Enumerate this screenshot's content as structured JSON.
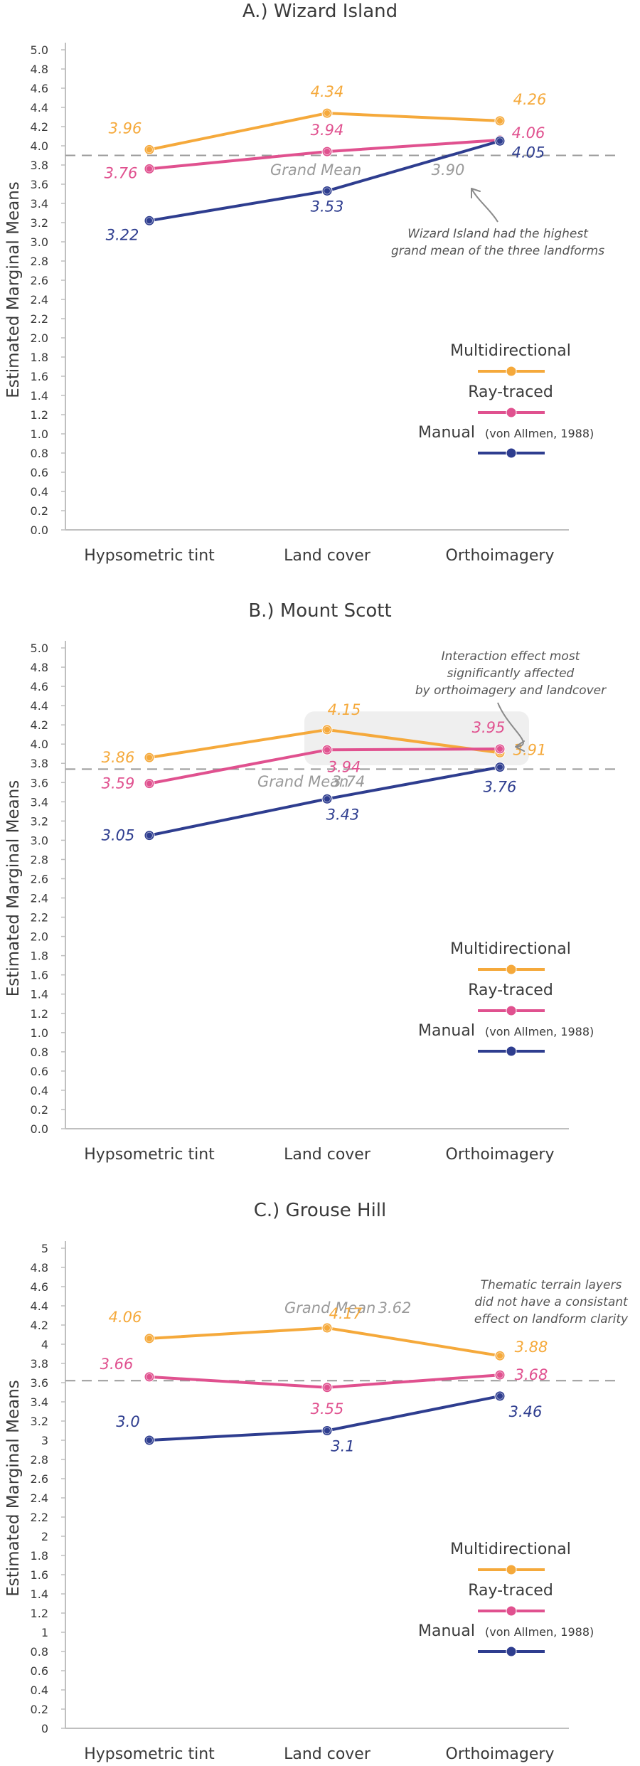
{
  "colors": {
    "multidirectional": "#F5A93B",
    "raytraced": "#E0518F",
    "manual": "#2E3D8F",
    "grand_mean": "#9a9a9a",
    "axis": "#bfbfbf"
  },
  "legend": {
    "multidirectional": "Multidirectional",
    "raytraced": "Ray-traced",
    "manual_main": "Manual",
    "manual_sub": "(von Allmen, 1988)"
  },
  "chart_data": [
    {
      "type": "line",
      "title": "A.) Wizard Island",
      "ylabel": "Estimated Marginal Means",
      "xlabel": "",
      "categories": [
        "Hypsometric tint",
        "Land cover",
        "Orthoimagery"
      ],
      "ylim": [
        0,
        5
      ],
      "yticks": [
        "0.0",
        "0.2",
        "0.4",
        "0.6",
        "0.8",
        "1.0",
        "1.2",
        "1.4",
        "1.6",
        "1.8",
        "2.0",
        "2.2",
        "2.4",
        "2.6",
        "2.8",
        "3.0",
        "3.2",
        "3.4",
        "3.6",
        "3.8",
        "4.0",
        "4.2",
        "4.4",
        "4.6",
        "4.8",
        "5.0"
      ],
      "series": [
        {
          "name": "Multidirectional",
          "key": "multidirectional",
          "values": [
            3.96,
            4.34,
            4.26
          ],
          "labels": [
            "3.96",
            "4.34",
            "4.26"
          ]
        },
        {
          "name": "Ray-traced",
          "key": "raytraced",
          "values": [
            3.76,
            3.94,
            4.06
          ],
          "labels": [
            "3.76",
            "3.94",
            "4.06"
          ]
        },
        {
          "name": "Manual (von Allmen, 1988)",
          "key": "manual",
          "values": [
            3.22,
            3.53,
            4.05
          ],
          "labels": [
            "3.22",
            "3.53",
            "4.05"
          ]
        }
      ],
      "grand_mean": {
        "value": 3.9,
        "label": "Grand Mean",
        "value_label": "3.90"
      },
      "annotation": [
        "Wizard Island had the highest",
        "grand mean of the three landforms"
      ]
    },
    {
      "type": "line",
      "title": "B.) Mount Scott",
      "ylabel": "Estimated Marginal Means",
      "xlabel": "",
      "categories": [
        "Hypsometric tint",
        "Land cover",
        "Orthoimagery"
      ],
      "ylim": [
        0,
        5
      ],
      "yticks": [
        "0.0",
        "0.2",
        "0.4",
        "0.6",
        "0.8",
        "1.0",
        "1.2",
        "1.4",
        "1.6",
        "1.8",
        "2.0",
        "2.2",
        "2.4",
        "2.6",
        "2.8",
        "3.0",
        "3.2",
        "3.4",
        "3.6",
        "3.8",
        "4.0",
        "4.2",
        "4.4",
        "4.6",
        "4.8",
        "5.0"
      ],
      "series": [
        {
          "name": "Multidirectional",
          "key": "multidirectional",
          "values": [
            3.86,
            4.15,
            3.91
          ],
          "labels": [
            "3.86",
            "4.15",
            "3.91"
          ]
        },
        {
          "name": "Ray-traced",
          "key": "raytraced",
          "values": [
            3.59,
            3.94,
            3.95
          ],
          "labels": [
            "3.59",
            "3.94",
            "3.95"
          ]
        },
        {
          "name": "Manual (von Allmen, 1988)",
          "key": "manual",
          "values": [
            3.05,
            3.43,
            3.76
          ],
          "labels": [
            "3.05",
            "3.43",
            "3.76"
          ]
        }
      ],
      "grand_mean": {
        "value": 3.74,
        "label": "Grand Mean",
        "value_label": "3.74"
      },
      "annotation": [
        "Interaction effect most",
        "significantly affected",
        "by orthoimagery and landcover"
      ]
    },
    {
      "type": "line",
      "title": "C.) Grouse Hill",
      "ylabel": "Estimated Marginal Means",
      "xlabel": "",
      "categories": [
        "Hypsometric tint",
        "Land cover",
        "Orthoimagery"
      ],
      "ylim": [
        0,
        5
      ],
      "yticks": [
        "0",
        "0.2",
        "0.4",
        "0.6",
        "0.8",
        "1",
        "1.2",
        "1.4",
        "1.6",
        "1.8",
        "2",
        "2.2",
        "2.4",
        "2.6",
        "2.8",
        "3",
        "3.2",
        "3.4",
        "3.6",
        "3.8",
        "4",
        "4.2",
        "4.4",
        "4.6",
        "4.8",
        "5"
      ],
      "series": [
        {
          "name": "Multidirectional",
          "key": "multidirectional",
          "values": [
            4.06,
            4.17,
            3.88
          ],
          "labels": [
            "4.06",
            "4.17",
            "3.88"
          ]
        },
        {
          "name": "Ray-traced",
          "key": "raytraced",
          "values": [
            3.66,
            3.55,
            3.68
          ],
          "labels": [
            "3.66",
            "3.55",
            "3.68"
          ]
        },
        {
          "name": "Manual (von Allmen, 1988)",
          "key": "manual",
          "values": [
            3.0,
            3.1,
            3.46
          ],
          "labels": [
            "3.0",
            "3.1",
            "3.46"
          ]
        }
      ],
      "grand_mean": {
        "value": 3.62,
        "label": "Grand Mean",
        "value_label": "3.62"
      },
      "annotation": [
        "Thematic terrain layers",
        "did not have a consistant",
        "effect on landform clarity"
      ]
    }
  ]
}
